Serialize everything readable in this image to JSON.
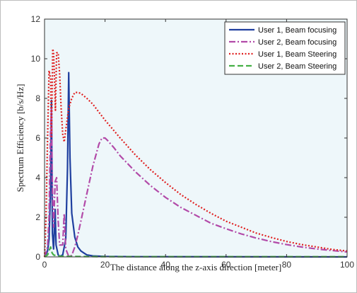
{
  "chart_data": {
    "type": "line",
    "xlabel": "The distance along the z-axis direction [meter]",
    "ylabel": "Spectrum Efficiency [b/s/Hz]",
    "xlim": [
      0,
      100
    ],
    "ylim": [
      0,
      12
    ],
    "xticks": [
      0,
      20,
      40,
      60,
      80,
      100
    ],
    "yticks": [
      0,
      2,
      4,
      6,
      8,
      10,
      12
    ],
    "grid": false,
    "legend_position": "top-right",
    "background": "#eef7fa",
    "series": [
      {
        "name": "User 1, Beam focusing",
        "color": "#1f3f9f",
        "dash": "solid",
        "points": [
          [
            0,
            0
          ],
          [
            1,
            0.3
          ],
          [
            1.5,
            0.9
          ],
          [
            2,
            3.5
          ],
          [
            2.3,
            7.9
          ],
          [
            2.6,
            1.2
          ],
          [
            3,
            0.4
          ],
          [
            3.5,
            2.4
          ],
          [
            3.8,
            0.6
          ],
          [
            4.5,
            0.1
          ],
          [
            5,
            0.03
          ],
          [
            6,
            0.1
          ],
          [
            7,
            0.9
          ],
          [
            7.6,
            4.5
          ],
          [
            8,
            9.3
          ],
          [
            8.4,
            5.0
          ],
          [
            9,
            2.2
          ],
          [
            10,
            1.0
          ],
          [
            11,
            0.5
          ],
          [
            12,
            0.3
          ],
          [
            13,
            0.2
          ],
          [
            14,
            0.1
          ],
          [
            16,
            0.05
          ],
          [
            20,
            0.02
          ],
          [
            30,
            0.01
          ],
          [
            100,
            0
          ]
        ]
      },
      {
        "name": "User 2, Beam focusing",
        "color": "#b24aa8",
        "dash": "dashdot",
        "points": [
          [
            0,
            0
          ],
          [
            1,
            0.5
          ],
          [
            1.5,
            2
          ],
          [
            2,
            6.5
          ],
          [
            2.3,
            7.5
          ],
          [
            2.6,
            3.5
          ],
          [
            3,
            1.5
          ],
          [
            3.5,
            3.8
          ],
          [
            4,
            4.0
          ],
          [
            4.5,
            1.8
          ],
          [
            5,
            0.6
          ],
          [
            6,
            0.6
          ],
          [
            6.5,
            2.2
          ],
          [
            7,
            0.4
          ],
          [
            8,
            0.03
          ],
          [
            9,
            0.08
          ],
          [
            10,
            0.5
          ],
          [
            11,
            1.1
          ],
          [
            12,
            1.8
          ],
          [
            14,
            3.2
          ],
          [
            16,
            4.6
          ],
          [
            18,
            5.7
          ],
          [
            19,
            6.0
          ],
          [
            20,
            6.0
          ],
          [
            21,
            5.85
          ],
          [
            23,
            5.5
          ],
          [
            25,
            5.1
          ],
          [
            30,
            4.3
          ],
          [
            35,
            3.6
          ],
          [
            40,
            3.0
          ],
          [
            45,
            2.5
          ],
          [
            50,
            2.1
          ],
          [
            55,
            1.7
          ],
          [
            60,
            1.42
          ],
          [
            65,
            1.16
          ],
          [
            70,
            0.95
          ],
          [
            75,
            0.77
          ],
          [
            80,
            0.62
          ],
          [
            85,
            0.5
          ],
          [
            90,
            0.4
          ],
          [
            95,
            0.32
          ],
          [
            100,
            0.25
          ]
        ]
      },
      {
        "name": "User 1, Beam Steering",
        "color": "#e02020",
        "dash": "dotted",
        "points": [
          [
            0,
            0
          ],
          [
            0.5,
            2
          ],
          [
            1,
            6
          ],
          [
            1.5,
            9.4
          ],
          [
            2,
            9.0
          ],
          [
            2.3,
            6.0
          ],
          [
            2.7,
            10.5
          ],
          [
            3,
            10.3
          ],
          [
            3.3,
            9.0
          ],
          [
            3.6,
            7.4
          ],
          [
            4,
            10.3
          ],
          [
            4.5,
            10.3
          ],
          [
            5,
            9.2
          ],
          [
            5.5,
            7.5
          ],
          [
            6,
            6.2
          ],
          [
            6.5,
            5.8
          ],
          [
            7,
            6.4
          ],
          [
            8,
            7.5
          ],
          [
            9,
            8.0
          ],
          [
            10,
            8.3
          ],
          [
            11,
            8.3
          ],
          [
            12,
            8.25
          ],
          [
            14,
            8.0
          ],
          [
            16,
            7.7
          ],
          [
            18,
            7.3
          ],
          [
            20,
            6.9
          ],
          [
            25,
            6.0
          ],
          [
            30,
            5.15
          ],
          [
            35,
            4.4
          ],
          [
            40,
            3.75
          ],
          [
            45,
            3.15
          ],
          [
            50,
            2.65
          ],
          [
            55,
            2.2
          ],
          [
            60,
            1.8
          ],
          [
            65,
            1.5
          ],
          [
            70,
            1.2
          ],
          [
            75,
            0.98
          ],
          [
            80,
            0.78
          ],
          [
            85,
            0.62
          ],
          [
            90,
            0.5
          ],
          [
            95,
            0.38
          ],
          [
            100,
            0.3
          ]
        ]
      },
      {
        "name": "User 2, Beam Steering",
        "color": "#45b045",
        "dash": "dashed",
        "points": [
          [
            0,
            0
          ],
          [
            0.5,
            0.05
          ],
          [
            1,
            0.1
          ],
          [
            1.5,
            0.3
          ],
          [
            2,
            0.5
          ],
          [
            2.5,
            0.2
          ],
          [
            3,
            0.1
          ],
          [
            4,
            0.05
          ],
          [
            6,
            0.03
          ],
          [
            10,
            0.02
          ],
          [
            20,
            0.01
          ],
          [
            40,
            0.01
          ],
          [
            100,
            0.01
          ]
        ]
      }
    ]
  }
}
